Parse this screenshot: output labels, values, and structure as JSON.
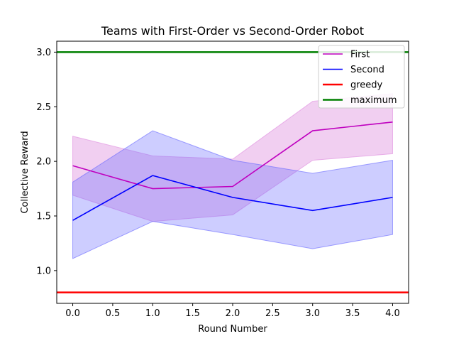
{
  "chart_data": {
    "type": "line",
    "title": "Teams with First-Order vs Second-Order Robot",
    "xlabel": "Round Number",
    "ylabel": "Collective Reward",
    "xlim": [
      -0.2,
      4.2
    ],
    "ylim": [
      0.7,
      3.1
    ],
    "xticks": [
      0.0,
      0.5,
      1.0,
      1.5,
      2.0,
      2.5,
      3.0,
      3.5,
      4.0
    ],
    "xtick_labels": [
      "0.0",
      "0.5",
      "1.0",
      "1.5",
      "2.0",
      "2.5",
      "3.0",
      "3.5",
      "4.0"
    ],
    "yticks": [
      1.0,
      1.5,
      2.0,
      2.5,
      3.0
    ],
    "ytick_labels": [
      "1.0",
      "1.5",
      "2.0",
      "2.5",
      "3.0"
    ],
    "grid": false,
    "legend_position": "top-right",
    "x": [
      0,
      1,
      2,
      3,
      4
    ],
    "series": [
      {
        "name": "First",
        "color": "#bf00bf",
        "values": [
          1.96,
          1.75,
          1.77,
          2.28,
          2.36
        ],
        "band_lower": [
          1.69,
          1.45,
          1.51,
          2.01,
          2.07
        ],
        "band_upper": [
          2.23,
          2.05,
          2.02,
          2.55,
          2.62
        ],
        "band_color": "#dd88dd"
      },
      {
        "name": "Second",
        "color": "#0000ff",
        "values": [
          1.46,
          1.87,
          1.67,
          1.55,
          1.67
        ],
        "band_lower": [
          1.11,
          1.45,
          1.33,
          1.2,
          1.33
        ],
        "band_upper": [
          1.81,
          2.28,
          2.01,
          1.89,
          2.01
        ],
        "band_color": "#6666ff"
      }
    ],
    "reference_lines": [
      {
        "name": "greedy",
        "value": 0.8,
        "color": "#ff0000"
      },
      {
        "name": "maximum",
        "value": 3.0,
        "color": "#008000"
      }
    ]
  }
}
